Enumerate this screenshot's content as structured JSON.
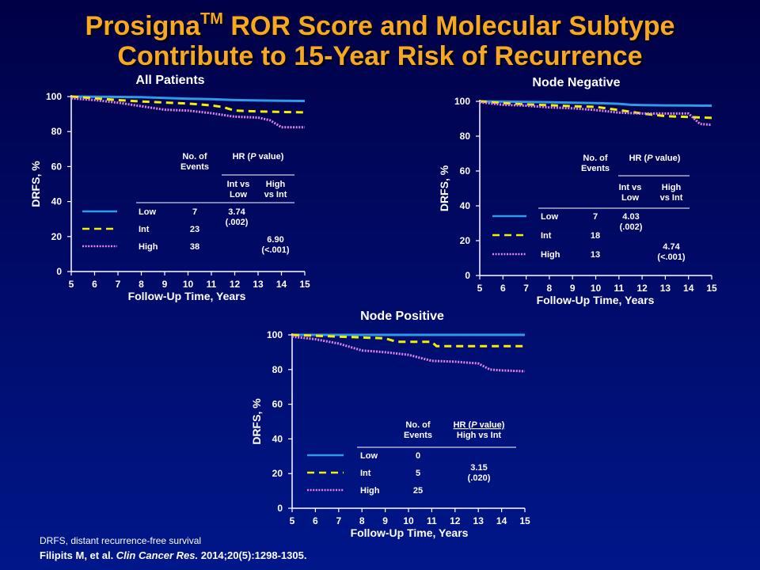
{
  "slide": {
    "title_line1_pre": "Prosigna",
    "title_tm": "TM",
    "title_line1_post": " ROR Score and Molecular Subtype",
    "title_line2": "Contribute to 15-Year Risk of Recurrence",
    "footnote": "DRFS, distant recurrence-free survival",
    "citation_authors": "Filipits M, et al. ",
    "citation_journal": "Clin Cancer Res.",
    "citation_details": " 2014;20(5):1298-1305."
  },
  "colors": {
    "low": "#2f9be8",
    "int": "#f4ee00",
    "high": "#e184e8",
    "axis": "#ffffff",
    "title": "#f7a823"
  },
  "chart_data": [
    {
      "type": "line",
      "title": "All Patients",
      "xlabel": "Follow-Up Time, Years",
      "ylabel": "DRFS, %",
      "xlim": [
        5,
        15
      ],
      "ylim": [
        0,
        100
      ],
      "xticks": [
        5,
        6,
        7,
        8,
        9,
        10,
        11,
        12,
        13,
        14,
        15
      ],
      "yticks": [
        0,
        20,
        40,
        60,
        80,
        100
      ],
      "grid": false,
      "series": [
        {
          "name": "Low",
          "style": "solid",
          "x": [
            5,
            8,
            9,
            10,
            11,
            12,
            13,
            14,
            15
          ],
          "y": [
            100,
            99.7,
            99.2,
            98.8,
            98.5,
            98,
            97.8,
            97.6,
            97.5
          ]
        },
        {
          "name": "Int",
          "style": "dashed",
          "x": [
            5,
            6,
            7,
            8,
            9,
            10,
            11,
            11.5,
            12,
            13,
            14,
            15
          ],
          "y": [
            100,
            99,
            98,
            97.2,
            96.6,
            96,
            95,
            94,
            92,
            91.5,
            91.2,
            91
          ]
        },
        {
          "name": "High",
          "style": "dotted",
          "x": [
            5,
            6,
            7,
            8,
            9,
            10,
            11,
            12,
            13,
            13.5,
            14,
            15
          ],
          "y": [
            99,
            98,
            96.5,
            94.5,
            92.5,
            92,
            90.5,
            88.5,
            88,
            86.5,
            82.5,
            82.5
          ]
        }
      ],
      "table": {
        "events_header_line1": "No. of",
        "events_header_line2": "Events",
        "hr_header_pre": "HR (",
        "hr_header_p": "P",
        "hr_header_post": " value)",
        "col1_line1": "Int vs",
        "col1_line2": "Low",
        "col2_line1": "High",
        "col2_line2": "vs Int",
        "rows": [
          {
            "label": "Low",
            "events": "7"
          },
          {
            "label": "Int",
            "events": "23"
          },
          {
            "label": "High",
            "events": "38"
          }
        ],
        "hr1_line1": "3.74",
        "hr1_line2": "(.002)",
        "hr2_line1": "6.90",
        "hr2_line2": "(<.001)"
      }
    },
    {
      "type": "line",
      "title": "Node Negative",
      "xlabel": "Follow-Up Time, Years",
      "ylabel": "DRFS, %",
      "xlim": [
        5,
        15
      ],
      "ylim": [
        0,
        100
      ],
      "xticks": [
        5,
        6,
        7,
        8,
        9,
        10,
        11,
        12,
        13,
        14,
        15
      ],
      "yticks": [
        0,
        20,
        40,
        60,
        80,
        100
      ],
      "grid": false,
      "series": [
        {
          "name": "Low",
          "style": "solid",
          "x": [
            5,
            8,
            9,
            10,
            11,
            11.5,
            12,
            13,
            14,
            15
          ],
          "y": [
            100,
            99.5,
            99.2,
            99,
            98.6,
            98,
            97.8,
            97.7,
            97.6,
            97.5
          ]
        },
        {
          "name": "Int",
          "style": "dashed",
          "x": [
            5,
            6,
            7,
            8,
            9,
            10,
            11,
            12,
            13,
            14,
            15
          ],
          "y": [
            100,
            99,
            98.2,
            97.8,
            97.2,
            96.8,
            95,
            93,
            91.5,
            91,
            90.5
          ]
        },
        {
          "name": "High",
          "style": "dotted",
          "x": [
            5,
            6,
            7,
            8,
            9,
            10,
            11,
            12,
            13,
            14,
            14.5,
            15
          ],
          "y": [
            99.5,
            98,
            97.5,
            96.5,
            96,
            95,
            93.5,
            93,
            93,
            93,
            87,
            86.5
          ]
        }
      ],
      "table": {
        "events_header_line1": "No. of",
        "events_header_line2": "Events",
        "hr_header_pre": "HR (",
        "hr_header_p": "P",
        "hr_header_post": " value)",
        "col1_line1": "Int vs",
        "col1_line2": "Low",
        "col2_line1": "High",
        "col2_line2": "vs Int",
        "rows": [
          {
            "label": "Low",
            "events": "7"
          },
          {
            "label": "Int",
            "events": "18"
          },
          {
            "label": "High",
            "events": "13"
          }
        ],
        "hr1_line1": "4.03",
        "hr1_line2": "(.002)",
        "hr2_line1": "4.74",
        "hr2_line2": "(<.001)"
      }
    },
    {
      "type": "line",
      "title": "Node Positive",
      "xlabel": "Follow-Up Time, Years",
      "ylabel": "DRFS, %",
      "xlim": [
        5,
        15
      ],
      "ylim": [
        0,
        100
      ],
      "xticks": [
        5,
        6,
        7,
        8,
        9,
        10,
        11,
        12,
        13,
        14,
        15
      ],
      "yticks": [
        0,
        20,
        40,
        60,
        80,
        100
      ],
      "grid": false,
      "series": [
        {
          "name": "Low",
          "style": "solid",
          "x": [
            5,
            15
          ],
          "y": [
            100,
            100
          ]
        },
        {
          "name": "Int",
          "style": "dashed",
          "x": [
            5,
            9,
            9.5,
            11,
            11.2,
            15
          ],
          "y": [
            100,
            98,
            96,
            96,
            93.5,
            93.5
          ]
        },
        {
          "name": "High",
          "style": "dotted",
          "x": [
            5,
            6,
            7,
            8,
            9,
            10,
            11,
            12,
            13,
            13.5,
            14,
            15
          ],
          "y": [
            99,
            97.5,
            95,
            91,
            90,
            88.5,
            85,
            84.5,
            83.5,
            80,
            79.5,
            79
          ]
        }
      ],
      "table": {
        "events_header_line1": "No. of",
        "events_header_line2": "Events",
        "hr_header_pre": "HR (",
        "hr_header_p": "P",
        "hr_header_post": " value)",
        "hr_header_line2": "High vs Int",
        "rows": [
          {
            "label": "Low",
            "events": "0"
          },
          {
            "label": "Int",
            "events": "5"
          },
          {
            "label": "High",
            "events": "25"
          }
        ],
        "hr1_line1": "3.15",
        "hr1_line2": "(.020)"
      }
    }
  ]
}
